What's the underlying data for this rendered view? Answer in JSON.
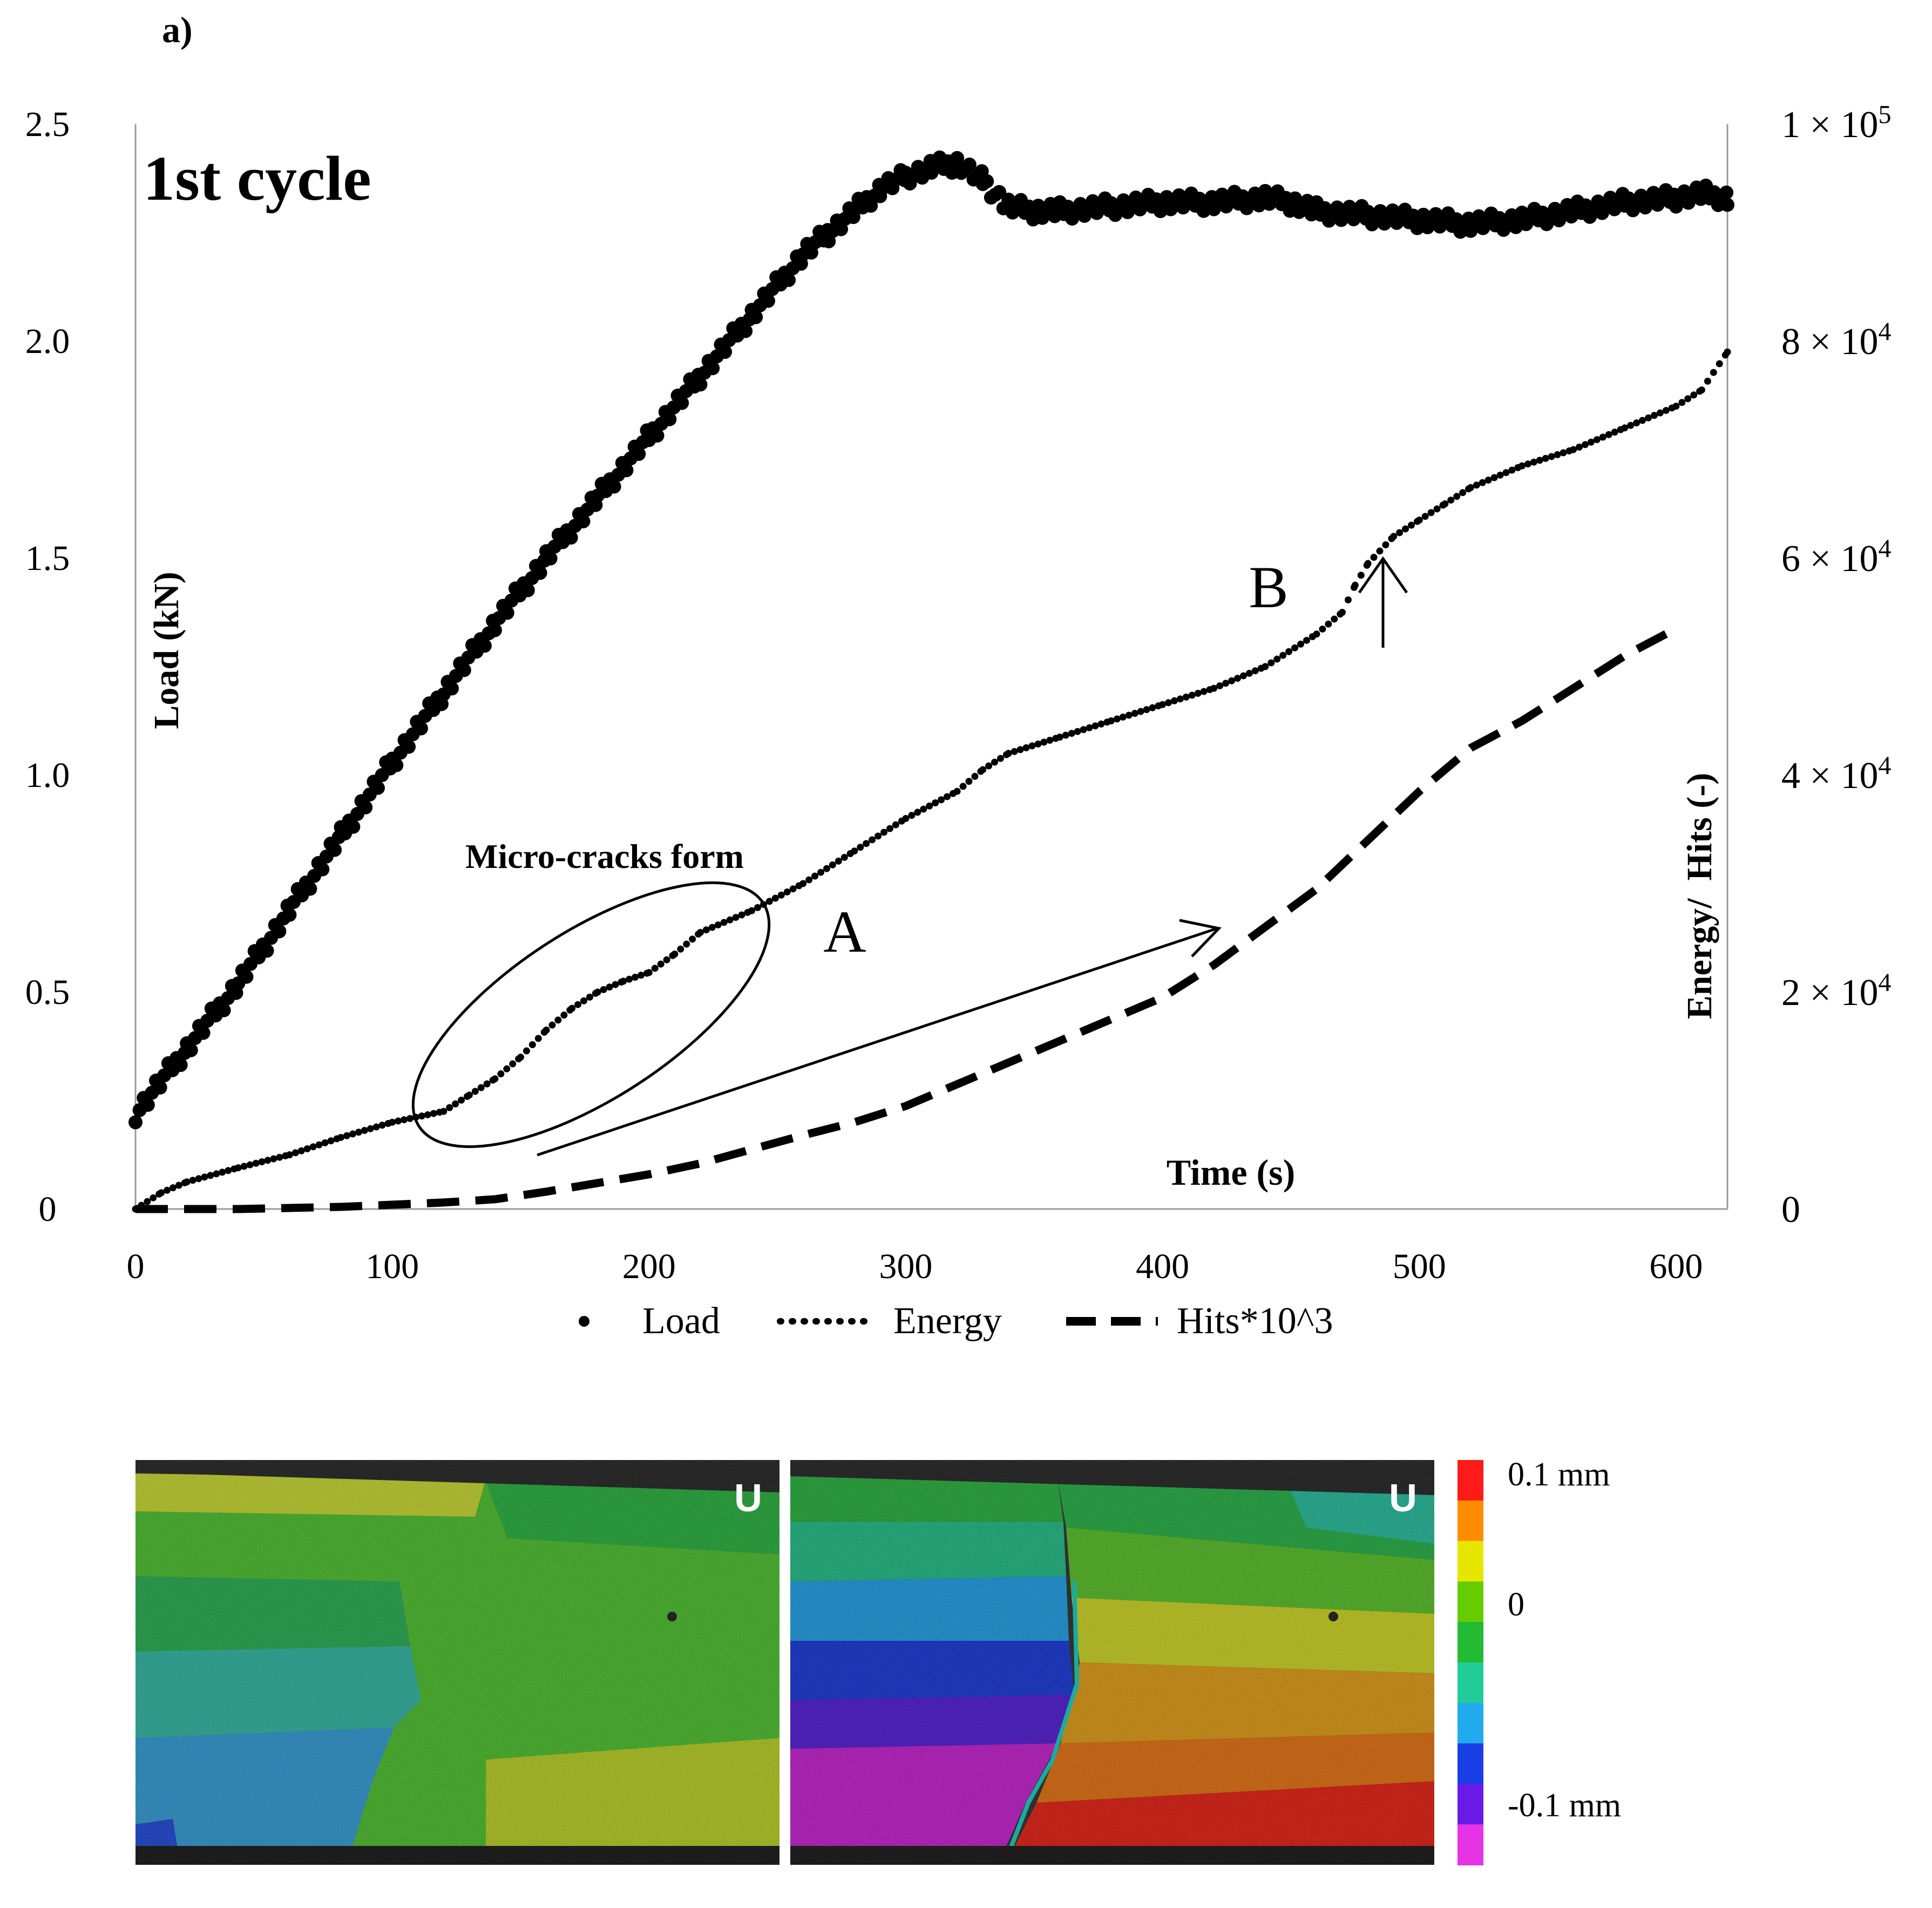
{
  "figure": {
    "panel_label": "a)",
    "cycle_title": "1st cycle",
    "dic_maps": [
      {
        "corner_label": "U"
      },
      {
        "corner_label": "U"
      }
    ],
    "colorbar": {
      "labels": [
        "0.1 mm",
        "0",
        "-0.1 mm"
      ],
      "colors": [
        "#ff1a1a",
        "#ff8c00",
        "#e6e600",
        "#66cc00",
        "#22bb33",
        "#22cc99",
        "#22aaee",
        "#1a3fe6",
        "#6a1ae6",
        "#e633e6"
      ]
    }
  },
  "chart_data": {
    "type": "line",
    "xlabel": "Time (s)",
    "ylabel_left": "Load (kN)",
    "ylabel_right": "Energy/  Hits (-)",
    "xlim": [
      0,
      620
    ],
    "ylim_left": [
      0,
      2.5
    ],
    "ylim_right": [
      0,
      100000
    ],
    "x_ticks": [
      "0",
      "100",
      "200",
      "300",
      "400",
      "500",
      "600"
    ],
    "y_left_ticks": [
      "0",
      "0.5",
      "1.0",
      "1.5",
      "2.0",
      "2.5"
    ],
    "y_right_ticks": [
      {
        "base": "0",
        "exp": ""
      },
      {
        "base": "2 × 10",
        "exp": "4"
      },
      {
        "base": "4 × 10",
        "exp": "4"
      },
      {
        "base": "6 × 10",
        "exp": "4"
      },
      {
        "base": "8 × 10",
        "exp": "4"
      },
      {
        "base": "1 × 10",
        "exp": "5"
      }
    ],
    "series": [
      {
        "name": "Load",
        "axis": "left",
        "style": "dots",
        "x": [
          0,
          20,
          40,
          60,
          80,
          100,
          120,
          140,
          160,
          180,
          200,
          220,
          240,
          260,
          270,
          280,
          290,
          300,
          310,
          320,
          330,
          340,
          350,
          360,
          380,
          400,
          420,
          440,
          450,
          460,
          480,
          500,
          520,
          540,
          560,
          580,
          600,
          610,
          620
        ],
        "y": [
          0.22,
          0.37,
          0.52,
          0.69,
          0.86,
          1.03,
          1.19,
          1.35,
          1.5,
          1.64,
          1.78,
          1.92,
          2.06,
          2.2,
          2.25,
          2.3,
          2.35,
          2.38,
          2.4,
          2.41,
          2.37,
          2.31,
          2.3,
          2.3,
          2.31,
          2.32,
          2.32,
          2.33,
          2.32,
          2.3,
          2.29,
          2.28,
          2.27,
          2.28,
          2.3,
          2.32,
          2.33,
          2.34,
          2.33
        ]
      },
      {
        "name": "Energy",
        "axis": "right",
        "style": "dotted",
        "x": [
          0,
          10,
          20,
          40,
          60,
          80,
          100,
          120,
          130,
          140,
          150,
          160,
          170,
          180,
          190,
          200,
          210,
          220,
          240,
          260,
          280,
          300,
          320,
          330,
          340,
          360,
          380,
          400,
          420,
          440,
          460,
          470,
          475,
          480,
          490,
          500,
          510,
          520,
          540,
          560,
          580,
          600,
          610,
          620
        ],
        "y": [
          0,
          1500,
          2500,
          3800,
          5000,
          6600,
          8000,
          9000,
          10500,
          12000,
          14000,
          16500,
          18500,
          20000,
          21000,
          21800,
          23500,
          25500,
          27500,
          30000,
          33000,
          36000,
          38500,
          40500,
          42000,
          43500,
          45000,
          46500,
          48000,
          50000,
          53000,
          55000,
          57500,
          59500,
          62000,
          63500,
          65000,
          66500,
          68500,
          70000,
          72000,
          74000,
          75500,
          79000
        ]
      },
      {
        "name": "Hits*10^3",
        "axis": "right",
        "style": "dashed",
        "x": [
          0,
          20,
          40,
          60,
          80,
          100,
          120,
          140,
          160,
          180,
          200,
          220,
          240,
          260,
          280,
          300,
          320,
          340,
          360,
          380,
          400,
          420,
          440,
          460,
          480,
          500,
          520,
          540,
          560,
          580,
          600
        ],
        "y": [
          0,
          0,
          0,
          100,
          200,
          400,
          600,
          900,
          1600,
          2400,
          3200,
          4200,
          5500,
          6800,
          8000,
          9500,
          11500,
          13500,
          15500,
          17500,
          19500,
          22500,
          26000,
          29500,
          34000,
          38500,
          42500,
          45000,
          48000,
          51000,
          53500
        ]
      }
    ],
    "annotations": [
      {
        "text": "Micro-cracks form",
        "at": [
          182,
          31000
        ],
        "type": "ellipse-label"
      },
      {
        "text": "A",
        "at": [
          277,
          25000
        ],
        "type": "label"
      },
      {
        "text": "B",
        "at": [
          443,
          55000
        ],
        "type": "label"
      }
    ],
    "legend": {
      "position": "bottom",
      "entries": [
        "Load",
        "Energy",
        "Hits*10^3"
      ]
    }
  }
}
